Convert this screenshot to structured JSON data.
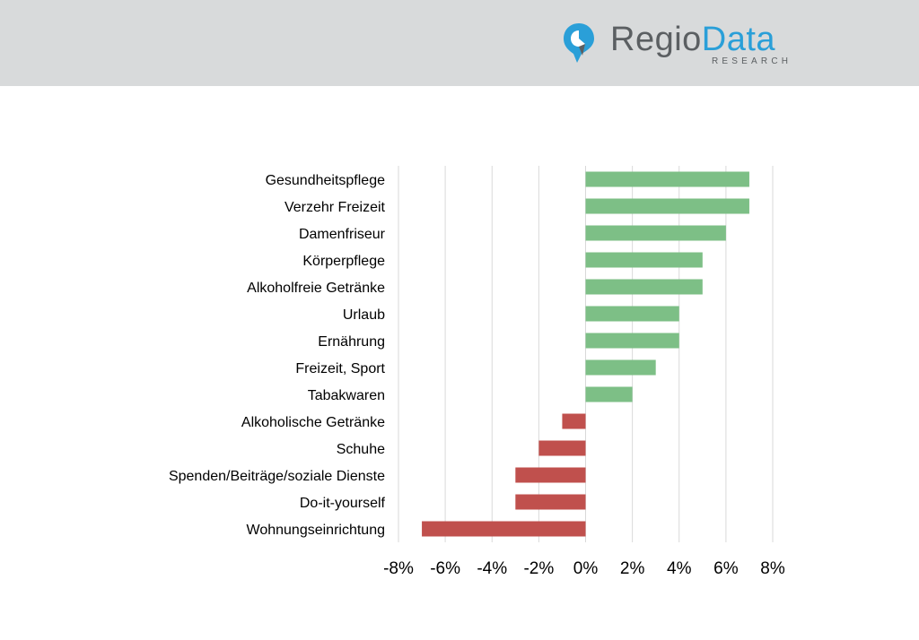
{
  "header": {
    "logo": {
      "name_part1": "Regio",
      "name_part2": "Data",
      "subline": "RESEARCH",
      "icon": "location-pin-icon",
      "color_primary": "#5b5f62",
      "color_accent": "#2a9fd8"
    },
    "background_color": "#d8dadb"
  },
  "chart_data": {
    "type": "bar",
    "orientation": "horizontal",
    "categories": [
      "Gesundheitspflege",
      "Verzehr Freizeit",
      "Damenfriseur",
      "Körperpflege",
      "Alkoholfreie Getränke",
      "Urlaub",
      "Ernährung",
      "Freizeit, Sport",
      "Tabakwaren",
      "Alkoholische Getränke",
      "Schuhe",
      "Spenden/Beiträge/soziale Dienste",
      "Do-it-yourself",
      "Wohnungseinrichtung"
    ],
    "values": [
      7,
      7,
      6,
      5,
      5,
      4,
      4,
      3,
      2,
      -1,
      -2,
      -3,
      -3,
      -7
    ],
    "xlim": [
      -8,
      8
    ],
    "xticks": [
      "-8%",
      "-6%",
      "-4%",
      "-2%",
      "0%",
      "2%",
      "4%",
      "6%",
      "8%"
    ],
    "tick_values": [
      -8,
      -6,
      -4,
      -2,
      0,
      2,
      4,
      6,
      8
    ],
    "grid": "vertical",
    "colors": {
      "positive": "#7dbf86",
      "negative": "#c0504d",
      "grid": "#d9d9d9"
    }
  }
}
